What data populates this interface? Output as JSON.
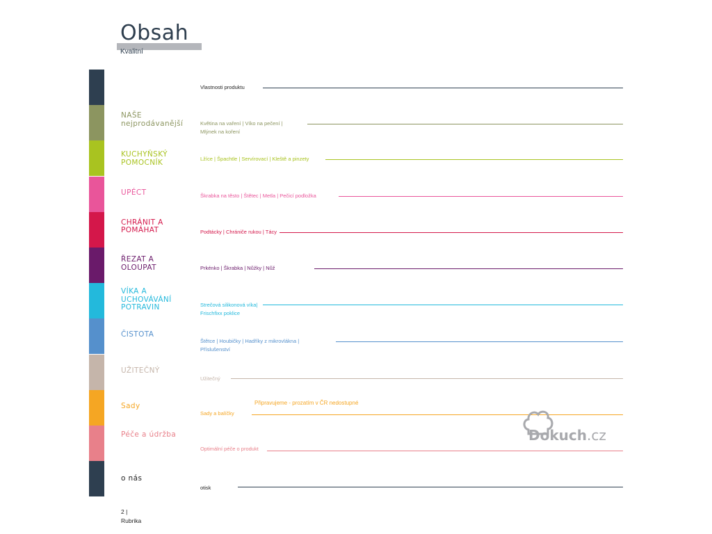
{
  "header": {
    "title": "Obsah",
    "subtitle": "Kvalitní"
  },
  "colors": {
    "navy": "#2e3f50",
    "olive": "#8c9560",
    "lime": "#a9c320",
    "pink": "#e9559a",
    "crimson": "#d4174a",
    "purple": "#6a1a6a",
    "cyan": "#23b9dc",
    "blue": "#5590cc",
    "taupe": "#c5b5aa",
    "orange": "#f5a623",
    "salmon": "#e8808a"
  },
  "sections": [
    {
      "label": "",
      "items": "Vlastnosti produktu",
      "color": "#2e3f50",
      "text_color": "#222222"
    },
    {
      "label": "NAŠE nejprodávanější",
      "items": "Květina na vaření | Víko na pečení | Mlýnek na koření",
      "color": "#8c9560",
      "text_color": "#8c9560"
    },
    {
      "label": "KUCHYŇSKÝ POMOCNÍK",
      "items": "Lžíce | Špachtle | Servírovací | Kleště a pinzety",
      "color": "#a9c320",
      "text_color": "#a9c320"
    },
    {
      "label": "UPÉCT",
      "items": "Škrabka na těsto | Štětec | Metla | Pečicí podložka",
      "color": "#e9559a",
      "text_color": "#e9559a"
    },
    {
      "label": "CHRÁNIT A POMÁHAT",
      "items": "Podtácky | Chrániče rukou | Tácy",
      "color": "#d4174a",
      "text_color": "#d4174a"
    },
    {
      "label": "ŘEZAT A OLOUPAT",
      "items": "Prkénko | Škrabka | Nůžky | Nůž",
      "color": "#6a1a6a",
      "text_color": "#6a1a6a"
    },
    {
      "label": "VÍKA A UCHOVÁVÁNÍ POTRAVIN",
      "items": "Strečová silikonová víka| Frischfixx poklice",
      "color": "#23b9dc",
      "text_color": "#23b9dc"
    },
    {
      "label": "ČISTOTA",
      "items": "Štětce | Houbičky | Hadříky z mikrovlákna | Příslušenství",
      "color": "#5590cc",
      "text_color": "#5590cc"
    },
    {
      "label": "UŽITEČNÝ",
      "items": "Užitečný",
      "color": "#c5b5aa",
      "text_color": "#c5b5aa"
    },
    {
      "label": "Sady",
      "items": "Sady a balíčky",
      "color": "#f5a623",
      "text_color": "#f5a623"
    },
    {
      "label": "Péče a údržba",
      "items": "Optimální péče o produkt",
      "color": "#e8808a",
      "text_color": "#e8808a"
    },
    {
      "label": "o nás",
      "items": "otisk",
      "color": "#2e3f50",
      "text_color": "#222222"
    }
  ],
  "note": "Připravujeme - prozatím v ČR nedostupné",
  "logo": {
    "brand": "Dokuch",
    "tld": ".cz"
  },
  "footer": {
    "page": "2 |",
    "section": "Rubrika"
  }
}
